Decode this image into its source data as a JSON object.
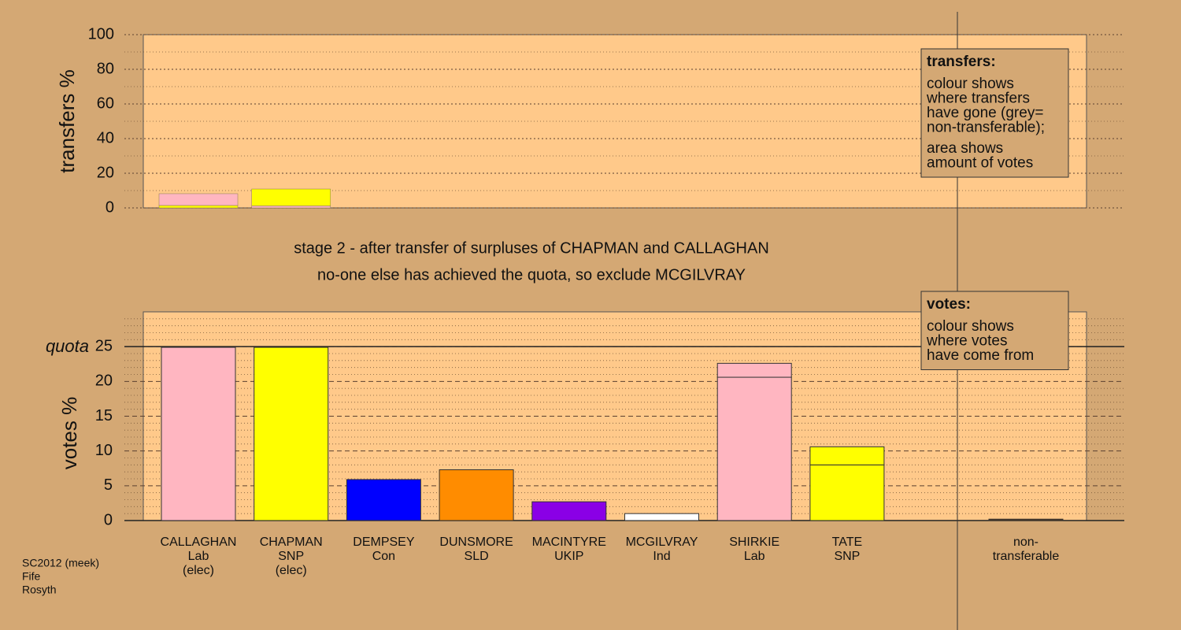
{
  "chart_data": [
    {
      "type": "stacked-bar",
      "axis_label": "transfers %",
      "ylim": [
        0,
        100
      ],
      "yticks": [
        0,
        20,
        40,
        60,
        80,
        100
      ],
      "minor_yticks": [
        10,
        30,
        50,
        70,
        90
      ],
      "grid": "dotted",
      "stacks": [
        [
          {
            "value": 1.4,
            "color": "#ffff00"
          },
          {
            "value": 6.8,
            "color": "#ffb6c1"
          }
        ],
        [
          {
            "value": 1.2,
            "color": "#ffb6c1"
          },
          {
            "value": 9.7,
            "color": "#ffff00"
          }
        ],
        [],
        [],
        [],
        [],
        [],
        [],
        []
      ],
      "legend": {
        "title": "transfers:",
        "paragraphs": [
          [
            "colour shows",
            "where transfers",
            "have gone (grey=",
            "non-transferable);"
          ],
          [
            "area shows",
            "amount of votes"
          ]
        ]
      }
    },
    {
      "type": "stacked-bar",
      "stage": [
        "stage 2 - after transfer of surpluses of CHAPMAN and CALLAGHAN",
        "no-one else has achieved the quota, so exclude MCGILVRAY"
      ],
      "axis_label": "votes %",
      "ylim": [
        0,
        30
      ],
      "yticks": [
        0,
        5,
        10,
        15,
        20,
        25
      ],
      "minor_yticks": [
        1,
        2,
        3,
        4,
        6,
        7,
        8,
        9,
        11,
        12,
        13,
        14,
        16,
        17,
        18,
        19,
        21,
        22,
        23,
        24,
        26,
        27,
        28,
        29
      ],
      "grid": "dashed",
      "quota": {
        "label": "quota",
        "value": 25
      },
      "categories": [
        [
          "CALLAGHAN",
          "Lab",
          "(elec)"
        ],
        [
          "CHAPMAN",
          "SNP",
          "(elec)"
        ],
        [
          "DEMPSEY",
          "Con"
        ],
        [
          "DUNSMORE",
          "SLD"
        ],
        [
          "MACINTYRE",
          "UKIP"
        ],
        [
          "MCGILVRAY",
          "Ind"
        ],
        [
          "SHIRKIE",
          "Lab"
        ],
        [
          "TATE",
          "SNP"
        ],
        [
          "non-",
          "transferable"
        ]
      ],
      "values": [
        24.9,
        24.9,
        5.9,
        7.3,
        2.7,
        1.0,
        20.6,
        8.0,
        0.2
      ],
      "colors": [
        "#ffb6c1",
        "#ffff00",
        "#0000ff",
        "#ff8c00",
        "#8a00e6",
        "#ffffff",
        "#ffb6c1",
        "#ffff00",
        "#5a3a1a"
      ],
      "transfer_values": [
        null,
        null,
        null,
        null,
        null,
        null,
        2.0,
        2.6,
        null
      ],
      "transfer_colors": [
        null,
        null,
        null,
        null,
        null,
        null,
        "#ffb6c1",
        "#ffff00",
        null
      ],
      "legend": {
        "title": "votes:",
        "paragraphs": [
          [
            "colour shows",
            "where votes",
            "have come from"
          ]
        ]
      }
    }
  ],
  "footer": [
    "SC2012 (meek)",
    "Fife",
    "Rosyth"
  ]
}
